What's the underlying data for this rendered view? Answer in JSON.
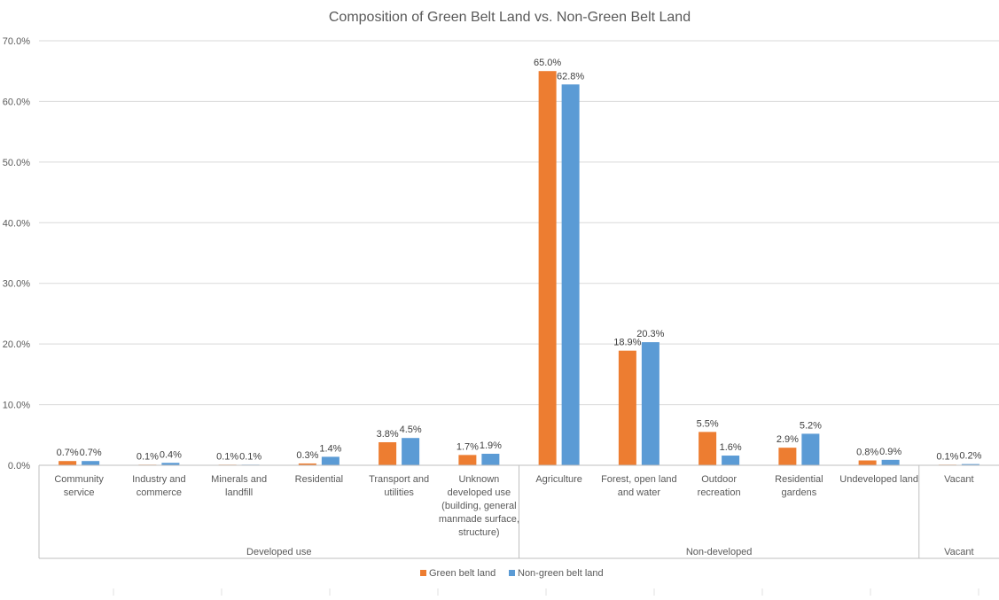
{
  "chart_data": {
    "type": "bar",
    "title": "Composition of Green Belt Land vs. Non-Green Belt Land",
    "xlabel": "",
    "ylabel": "",
    "ylim": [
      0,
      70
    ],
    "yticks": [
      0,
      10,
      20,
      30,
      40,
      50,
      60,
      70
    ],
    "ytick_labels": [
      "0.0%",
      "10.0%",
      "20.0%",
      "30.0%",
      "40.0%",
      "50.0%",
      "60.0%",
      "70.0%"
    ],
    "grid": true,
    "legend_position": "bottom",
    "categories": [
      [
        "Community",
        "service"
      ],
      [
        "Industry and",
        "commerce"
      ],
      [
        "Minerals and",
        "landfill"
      ],
      [
        "Residential"
      ],
      [
        "Transport and",
        "utilities"
      ],
      [
        "Unknown",
        "developed use",
        "(building, general",
        "manmade surface,",
        "structure)"
      ],
      [
        "Agriculture"
      ],
      [
        "Forest, open land",
        "and water"
      ],
      [
        "Outdoor",
        "recreation"
      ],
      [
        "Residential",
        "gardens"
      ],
      [
        "Undeveloped land"
      ],
      [
        "Vacant"
      ]
    ],
    "groups": [
      {
        "label": "Developed use",
        "start": 0,
        "end": 5
      },
      {
        "label": "Non-developed",
        "start": 6,
        "end": 10
      },
      {
        "label": "Vacant",
        "start": 11,
        "end": 11
      }
    ],
    "series": [
      {
        "name": "Green belt land",
        "color": "#ED7D31",
        "values": [
          0.7,
          0.1,
          0.1,
          0.3,
          3.8,
          1.7,
          65.0,
          18.9,
          5.5,
          2.9,
          0.8,
          0.1
        ],
        "labels": [
          "0.7%",
          "0.1%",
          "0.1%",
          "0.3%",
          "3.8%",
          "1.7%",
          "65.0%",
          "18.9%",
          "5.5%",
          "2.9%",
          "0.8%",
          "0.1%"
        ]
      },
      {
        "name": "Non-green belt land",
        "color": "#5B9BD5",
        "values": [
          0.7,
          0.4,
          0.1,
          1.4,
          4.5,
          1.9,
          62.8,
          20.3,
          1.6,
          5.2,
          0.9,
          0.2
        ],
        "labels": [
          "0.7%",
          "0.4%",
          "0.1%",
          "1.4%",
          "4.5%",
          "1.9%",
          "62.8%",
          "20.3%",
          "1.6%",
          "5.2%",
          "0.9%",
          "0.2%"
        ]
      }
    ]
  }
}
